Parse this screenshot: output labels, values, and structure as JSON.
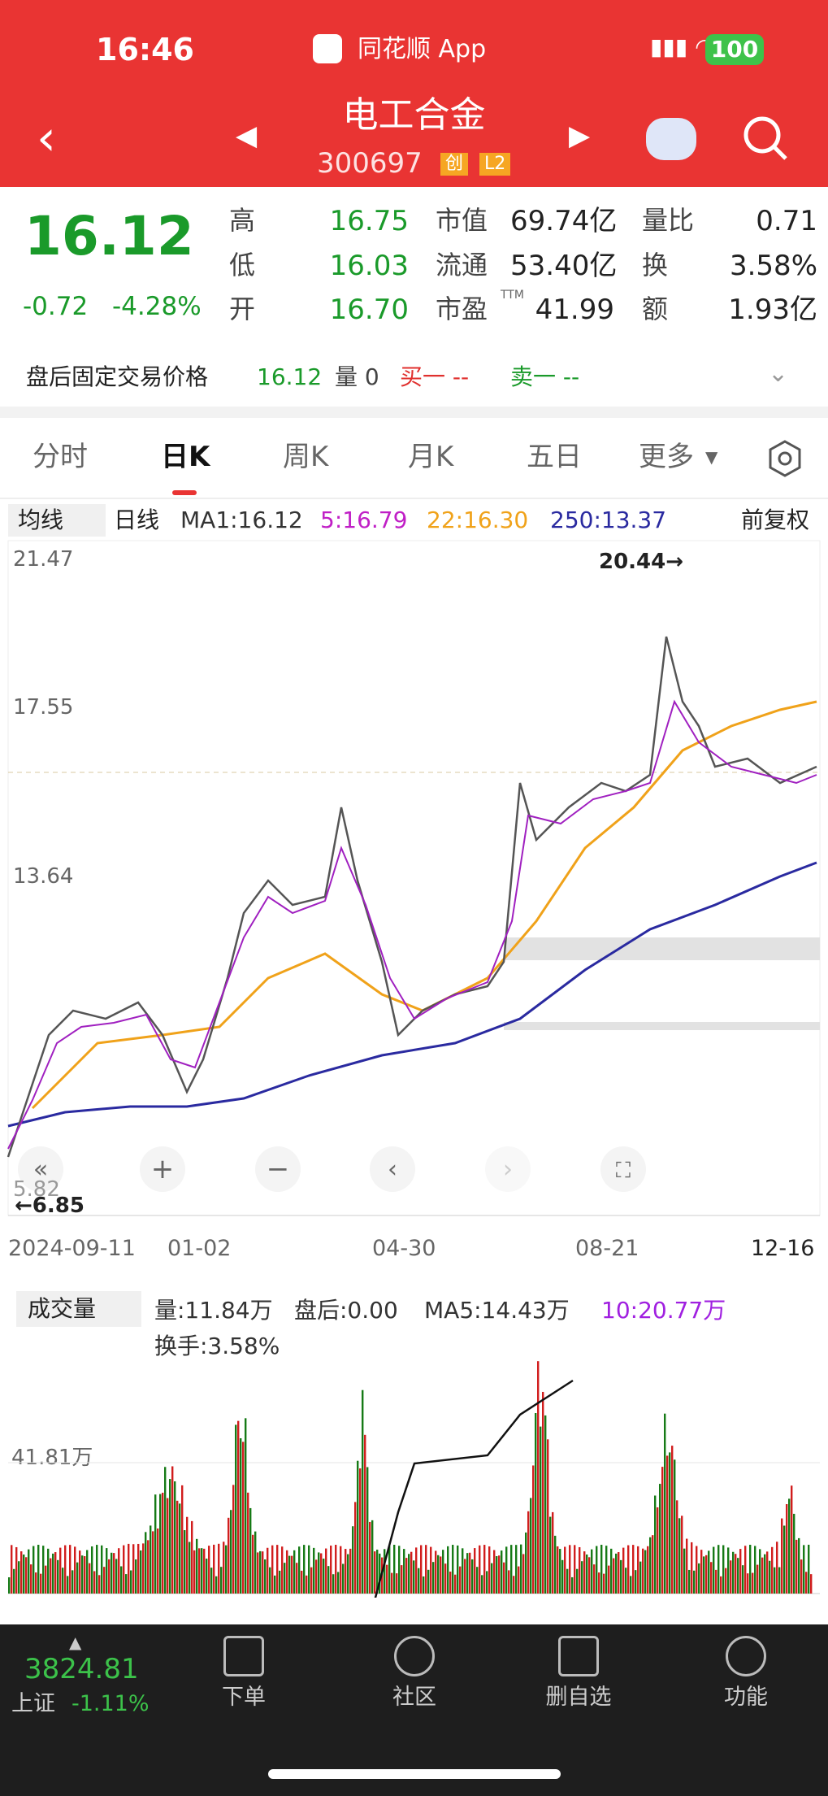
{
  "status_bar": {
    "time": "16:46",
    "app": "同花顺 App",
    "battery": "100"
  },
  "header": {
    "title": "电工合金",
    "code": "300697",
    "badges": [
      "创",
      "L2"
    ]
  },
  "quote": {
    "price": "16.12",
    "change": "-0.72",
    "change_pct": "-4.28%",
    "col1": [
      {
        "label": "高",
        "value": "16.75"
      },
      {
        "label": "低",
        "value": "16.03"
      },
      {
        "label": "开",
        "value": "16.70"
      }
    ],
    "col2": [
      {
        "label": "市值",
        "value": "69.74亿"
      },
      {
        "label": "流通",
        "value": "53.40亿"
      },
      {
        "label": "市盈",
        "sup": "TTM",
        "value": "41.99"
      }
    ],
    "col3": [
      {
        "label": "量比",
        "value": "0.71"
      },
      {
        "label": "换",
        "value": "3.58%"
      },
      {
        "label": "额",
        "value": "1.93亿"
      }
    ]
  },
  "after_hours": {
    "label": "盘后固定交易价格",
    "price": "16.12",
    "volume": "量 0",
    "buy": "买一 --",
    "sell": "卖一 --"
  },
  "tabs": [
    "分时",
    "日K",
    "周K",
    "月K",
    "五日",
    "更多"
  ],
  "ma_bar": {
    "dropdown": "均线",
    "period": "日线",
    "ma1": "MA1:16.12",
    "ma5": "5:16.79",
    "ma22": "22:16.30",
    "ma250": "250:13.37",
    "adjust": "前复权"
  },
  "kline": {
    "y_labels": [
      "21.47",
      "17.55",
      "13.64",
      "5.82"
    ],
    "high_label": "20.44→",
    "low_label": "←6.85",
    "dates": [
      "2024-09-11",
      "01-02",
      "04-30",
      "08-21",
      "12-16"
    ]
  },
  "volume": {
    "dropdown": "成交量",
    "vol": "量:11.84万",
    "after": "盘后:0.00",
    "ma5": "MA5:14.43万",
    "ma10": "10:20.77万",
    "turnover": "换手:3.58%",
    "y_label": "41.81万"
  },
  "bottom": {
    "index_value": "3824.81",
    "index_name": "上证",
    "index_change": "-1.11%",
    "nav": [
      "下单",
      "社区",
      "删自选",
      "功能"
    ]
  }
}
